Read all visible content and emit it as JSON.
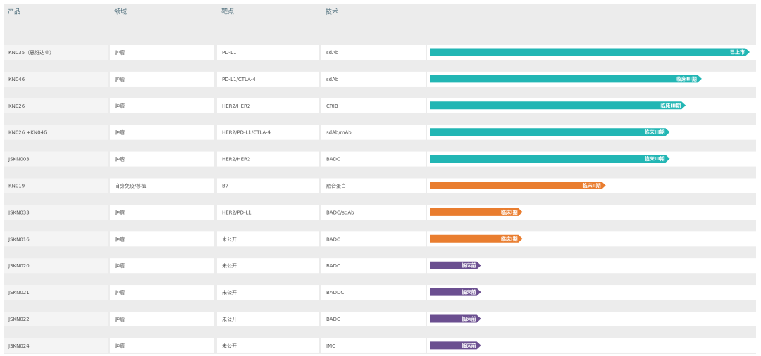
{
  "table": {
    "columns": [
      "产品",
      "领域",
      "靶点",
      "技术"
    ],
    "rows": [
      {
        "product": "KN035（恩维达®）",
        "field": "肿瘤",
        "target": "PD-L1",
        "tech": "sdAb",
        "stage": "已上市",
        "progress": 100,
        "color": "#22b6b4"
      },
      {
        "product": "KN046",
        "field": "肿瘤",
        "target": "PD-L1/CTLA-4",
        "tech": "sdAb",
        "stage": "临床III期",
        "progress": 85,
        "color": "#22b6b4"
      },
      {
        "product": "KN026",
        "field": "肿瘤",
        "target": "HER2/HER2",
        "tech": "CRIB",
        "stage": "临床III期",
        "progress": 80,
        "color": "#22b6b4"
      },
      {
        "product": "KN026 +KN046",
        "field": "肿瘤",
        "target": "HER2/PD-L1/CTLA-4",
        "tech": "sdAb/mAb",
        "stage": "临床III期",
        "progress": 75,
        "color": "#22b6b4"
      },
      {
        "product": "JSKN003",
        "field": "肿瘤",
        "target": "HER2/HER2",
        "tech": "BADC",
        "stage": "临床III期",
        "progress": 75,
        "color": "#22b6b4"
      },
      {
        "product": "KN019",
        "field": "自身免疫/移植",
        "target": "B7",
        "tech": "融合蛋白",
        "stage": "临床II期",
        "progress": 55,
        "color": "#e97d2f"
      },
      {
        "product": "JSKN033",
        "field": "肿瘤",
        "target": "HER2/PD-L1",
        "tech": "BADC/sdAb",
        "stage": "临床I期",
        "progress": 29,
        "color": "#e97d2f"
      },
      {
        "product": "JSKN016",
        "field": "肿瘤",
        "target": "未公开",
        "tech": "BADC",
        "stage": "临床I期",
        "progress": 29,
        "color": "#e97d2f"
      },
      {
        "product": "JSKN020",
        "field": "肿瘤",
        "target": "未公开",
        "tech": "BADC",
        "stage": "临床前",
        "progress": 16,
        "color": "#6b4f90"
      },
      {
        "product": "JSKN021",
        "field": "肿瘤",
        "target": "未公开",
        "tech": "BADDC",
        "stage": "临床前",
        "progress": 16,
        "color": "#6b4f90"
      },
      {
        "product": "JSKN022",
        "field": "肿瘤",
        "target": "未公开",
        "tech": "BADC",
        "stage": "临床前",
        "progress": 16,
        "color": "#6b4f90"
      },
      {
        "product": "JSKN024",
        "field": "肿瘤",
        "target": "未公开",
        "tech": "IMC",
        "stage": "临床前",
        "progress": 16,
        "color": "#6b4f90"
      }
    ]
  }
}
